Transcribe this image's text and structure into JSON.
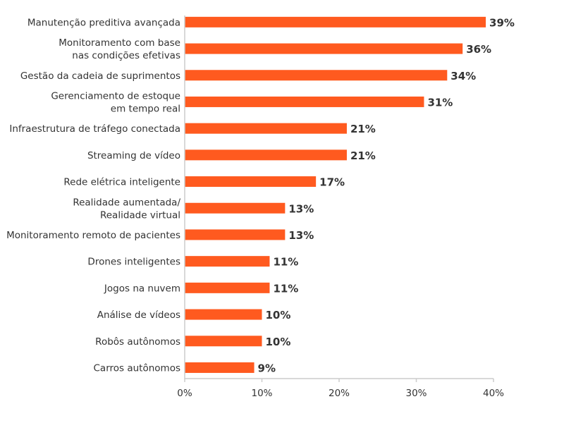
{
  "chart_data": {
    "type": "bar",
    "orientation": "horizontal",
    "categories": [
      [
        "Manutenção preditiva avançada"
      ],
      [
        "Monitoramento com base",
        "nas condições efetivas"
      ],
      [
        "Gestão da cadeia de suprimentos"
      ],
      [
        "Gerenciamento de estoque",
        "em tempo real"
      ],
      [
        "Infraestrutura de tráfego conectada"
      ],
      [
        "Streaming de vídeo"
      ],
      [
        "Rede elétrica inteligente"
      ],
      [
        "Realidade aumentada/",
        "Realidade virtual"
      ],
      [
        "Monitoramento remoto de pacientes"
      ],
      [
        "Drones inteligentes"
      ],
      [
        "Jogos na nuvem"
      ],
      [
        "Análise de vídeos"
      ],
      [
        "Robôs autônomos"
      ],
      [
        "Carros autônomos"
      ]
    ],
    "values": [
      39,
      36,
      34,
      31,
      21,
      21,
      17,
      13,
      13,
      11,
      11,
      10,
      10,
      9
    ],
    "value_labels": [
      "39%",
      "36%",
      "34%",
      "31%",
      "21%",
      "21%",
      "17%",
      "13%",
      "13%",
      "11%",
      "11%",
      "10%",
      "10%",
      "9%"
    ],
    "xlim": [
      0,
      40
    ],
    "xticks": [
      0,
      10,
      20,
      30,
      40
    ],
    "xtick_labels": [
      "0%",
      "10%",
      "20%",
      "30%",
      "40%"
    ],
    "grid": false,
    "bar_color": "#FF5A1F",
    "axis_color": "#CCCCCC"
  }
}
